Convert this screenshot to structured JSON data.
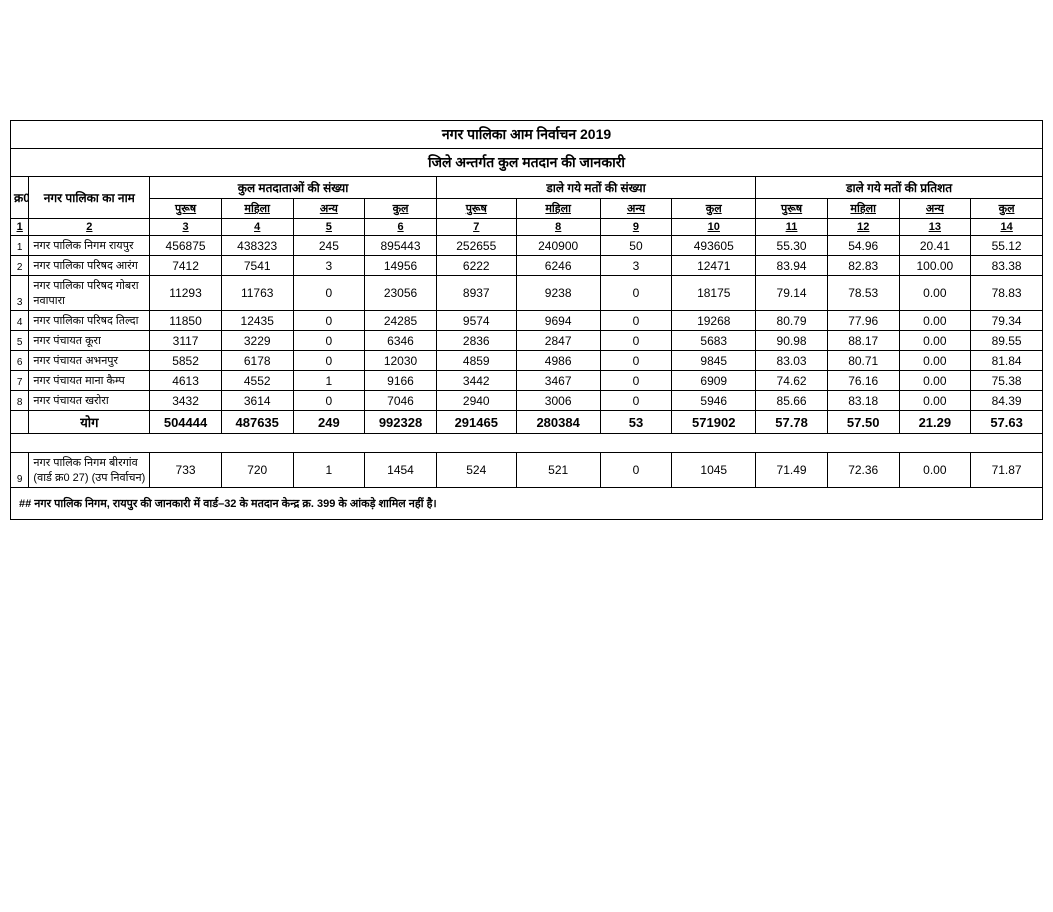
{
  "title1": "नगर पालिका आम निर्वाचन 2019",
  "title2": "जिले अन्तर्गत कुल मतदान की जानकारी",
  "headers": {
    "sno": "क्र0",
    "name": "नगर पालिका का नाम",
    "g1": "कुल मतदाताओं की संख्या",
    "g2": "डाले गये मतों की संख्या",
    "g3": "डाले गये मतों की प्रतिशत",
    "male": "पुरूष",
    "female": "महिला",
    "other": "अन्य",
    "total": "कुल"
  },
  "colnums": [
    "1",
    "2",
    "3",
    "4",
    "5",
    "6",
    "7",
    "8",
    "9",
    "10",
    "11",
    "12",
    "13",
    "14"
  ],
  "rows": [
    {
      "n": "1",
      "name": "नगर पालिक निगम रायपुर",
      "c": [
        "456875",
        "438323",
        "245",
        "895443",
        "252655",
        "240900",
        "50",
        "493605",
        "55.30",
        "54.96",
        "20.41",
        "55.12"
      ]
    },
    {
      "n": "2",
      "name": "नगर पालिका परिषद आरंग",
      "c": [
        "7412",
        "7541",
        "3",
        "14956",
        "6222",
        "6246",
        "3",
        "12471",
        "83.94",
        "82.83",
        "100.00",
        "83.38"
      ]
    },
    {
      "n": "3",
      "name": "नगर पालिका परिषद गोबरा नवापारा",
      "c": [
        "11293",
        "11763",
        "0",
        "23056",
        "8937",
        "9238",
        "0",
        "18175",
        "79.14",
        "78.53",
        "0.00",
        "78.83"
      ]
    },
    {
      "n": "4",
      "name": "नगर पालिका परिषद तिल्दा",
      "c": [
        "11850",
        "12435",
        "0",
        "24285",
        "9574",
        "9694",
        "0",
        "19268",
        "80.79",
        "77.96",
        "0.00",
        "79.34"
      ]
    },
    {
      "n": "5",
      "name": "नगर पंचायत कूरा",
      "c": [
        "3117",
        "3229",
        "0",
        "6346",
        "2836",
        "2847",
        "0",
        "5683",
        "90.98",
        "88.17",
        "0.00",
        "89.55"
      ]
    },
    {
      "n": "6",
      "name": "नगर पंचायत अभनपुर",
      "c": [
        "5852",
        "6178",
        "0",
        "12030",
        "4859",
        "4986",
        "0",
        "9845",
        "83.03",
        "80.71",
        "0.00",
        "81.84"
      ]
    },
    {
      "n": "7",
      "name": "नगर पंचायत माना कैम्प",
      "c": [
        "4613",
        "4552",
        "1",
        "9166",
        "3442",
        "3467",
        "0",
        "6909",
        "74.62",
        "76.16",
        "0.00",
        "75.38"
      ]
    },
    {
      "n": "8",
      "name": "नगर पंचायत खरोरा",
      "c": [
        "3432",
        "3614",
        "0",
        "7046",
        "2940",
        "3006",
        "0",
        "5946",
        "85.66",
        "83.18",
        "0.00",
        "84.39"
      ]
    }
  ],
  "total": {
    "label": "योग",
    "c": [
      "504444",
      "487635",
      "249",
      "992328",
      "291465",
      "280384",
      "53",
      "571902",
      "57.78",
      "57.50",
      "21.29",
      "57.63"
    ]
  },
  "extra": {
    "n": "9",
    "name": "नगर पालिक निगम बीरगांव (वार्ड क्र0 27) (उप निर्वाचन)",
    "c": [
      "733",
      "720",
      "1",
      "1454",
      "524",
      "521",
      "0",
      "1045",
      "71.49",
      "72.36",
      "0.00",
      "71.87"
    ]
  },
  "note": "## नगर पालिक निगम, रायपुर की जानकारी में वार्ड–32 के मतदान केन्द्र क्र. 399 के आंकड़े शामिल नहीं है।"
}
